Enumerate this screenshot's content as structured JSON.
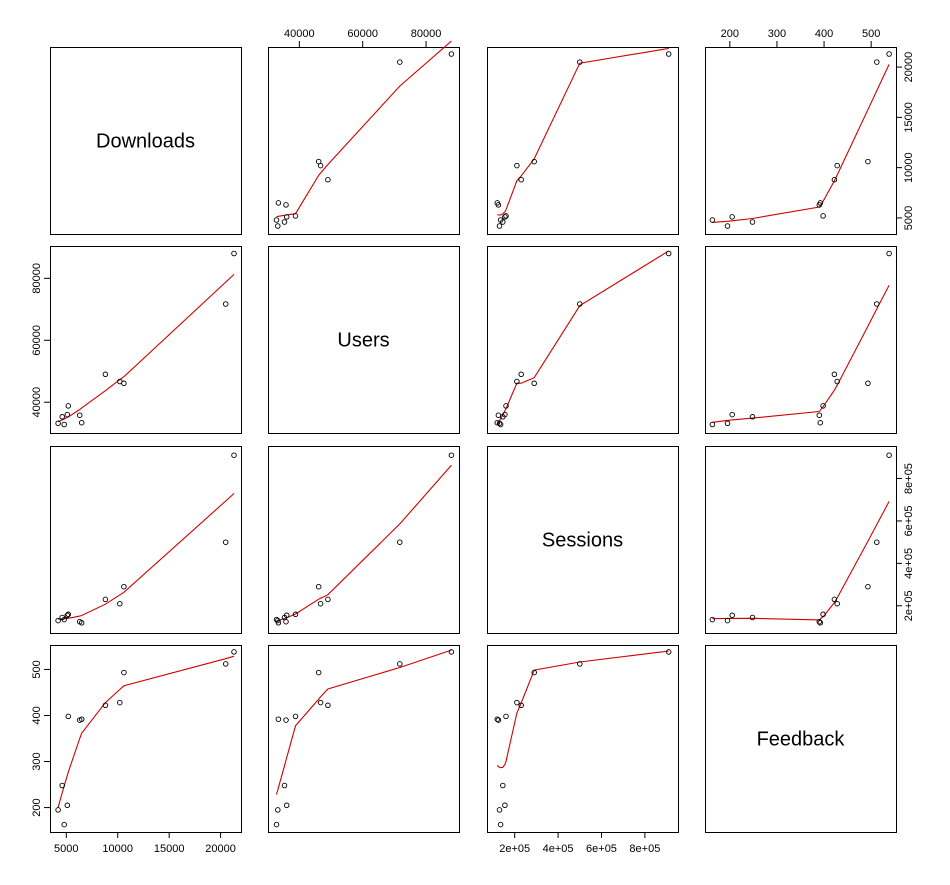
{
  "chart_data": {
    "type": "scatter",
    "title": "",
    "grid": false,
    "variables": [
      "Downloads",
      "Users",
      "Sessions",
      "Feedback"
    ],
    "ranges": {
      "Downloads": [
        4000,
        21400
      ],
      "Users": [
        32000,
        88500
      ],
      "Sessions": [
        100000,
        925000
      ],
      "Feedback": [
        160,
        540
      ]
    },
    "ticks": {
      "Downloads": [
        5000,
        10000,
        15000,
        20000
      ],
      "Users": [
        40000,
        60000,
        80000
      ],
      "Sessions": [
        200000,
        400000,
        600000,
        800000
      ],
      "Feedback": [
        200,
        300,
        400,
        500
      ]
    },
    "tick_labels": {
      "Downloads": [
        "5000",
        "10000",
        "15000",
        "20000"
      ],
      "Users": [
        "40000",
        "60000",
        "80000"
      ],
      "Sessions": [
        "2e+05",
        "4e+05",
        "6e+05",
        "8e+05"
      ],
      "Feedback": [
        "200",
        "300",
        "400",
        "500"
      ]
    },
    "observations": [
      {
        "Downloads": 4200,
        "Users": 33200,
        "Sessions": 130000,
        "Feedback": 195
      },
      {
        "Downloads": 4600,
        "Users": 35300,
        "Sessions": 145000,
        "Feedback": 248
      },
      {
        "Downloads": 4800,
        "Users": 32800,
        "Sessions": 135000,
        "Feedback": 163
      },
      {
        "Downloads": 5100,
        "Users": 36000,
        "Sessions": 155000,
        "Feedback": 205
      },
      {
        "Downloads": 5200,
        "Users": 38800,
        "Sessions": 160000,
        "Feedback": 398
      },
      {
        "Downloads": 6300,
        "Users": 35800,
        "Sessions": 125000,
        "Feedback": 390
      },
      {
        "Downloads": 6500,
        "Users": 33400,
        "Sessions": 120000,
        "Feedback": 392
      },
      {
        "Downloads": 8800,
        "Users": 49000,
        "Sessions": 230000,
        "Feedback": 422
      },
      {
        "Downloads": 10200,
        "Users": 46700,
        "Sessions": 210000,
        "Feedback": 428
      },
      {
        "Downloads": 10600,
        "Users": 46100,
        "Sessions": 290000,
        "Feedback": 493
      },
      {
        "Downloads": 20500,
        "Users": 71700,
        "Sessions": 500000,
        "Feedback": 512
      },
      {
        "Downloads": 21300,
        "Users": 88000,
        "Sessions": 910000,
        "Feedback": 538
      }
    ],
    "smoother_color": "#d00000",
    "point_color": "#000000"
  }
}
